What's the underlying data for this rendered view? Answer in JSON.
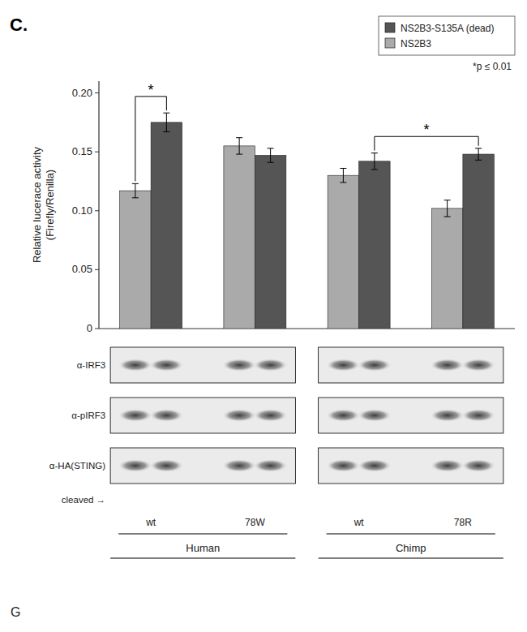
{
  "chart_data": {
    "type": "bar",
    "title": "C.",
    "ylabel": "Relative lucerace activity\n(Firefly/Renilla)",
    "categories": [
      "wt",
      "78W",
      "wt",
      "78R"
    ],
    "series": [
      {
        "name": "NS2B3",
        "color": "#aaaaaa",
        "values": [
          0.117,
          0.155,
          0.13,
          0.102
        ],
        "errors": [
          0.006,
          0.007,
          0.006,
          0.007
        ]
      },
      {
        "name": "NS2B3-S135A (dead)",
        "color": "#555555",
        "values": [
          0.175,
          0.147,
          0.142,
          0.148
        ],
        "errors": [
          0.008,
          0.006,
          0.007,
          0.005
        ]
      }
    ],
    "ylim": [
      0,
      0.21
    ],
    "yticks": [
      0,
      0.05,
      {
        "value": 0.1,
        "label": "0.10"
      },
      0.15,
      {
        "value": 0.2,
        "label": "0.20"
      }
    ],
    "tick_labels": "y",
    "legend": "upper right",
    "grid": false,
    "significance_label": "*p ≤ 0.01",
    "annotations": [
      {
        "text": "*",
        "y": 0.197,
        "between": [
          [
            0,
            0
          ],
          [
            1,
            0
          ]
        ]
      },
      {
        "text": "*",
        "y": 0.163,
        "between": [
          [
            1,
            2
          ],
          [
            1,
            3
          ]
        ]
      }
    ],
    "blot": {
      "rows": [
        "α-IRF3",
        "α-pIRF3",
        "α-HA(STING)"
      ],
      "cleaved": "cleaved →",
      "groups": [
        {
          "label": "Human",
          "categories": [
            0,
            1
          ]
        },
        {
          "label": "Chimp",
          "categories": [
            2,
            3
          ]
        }
      ]
    },
    "corner_label": "G"
  }
}
